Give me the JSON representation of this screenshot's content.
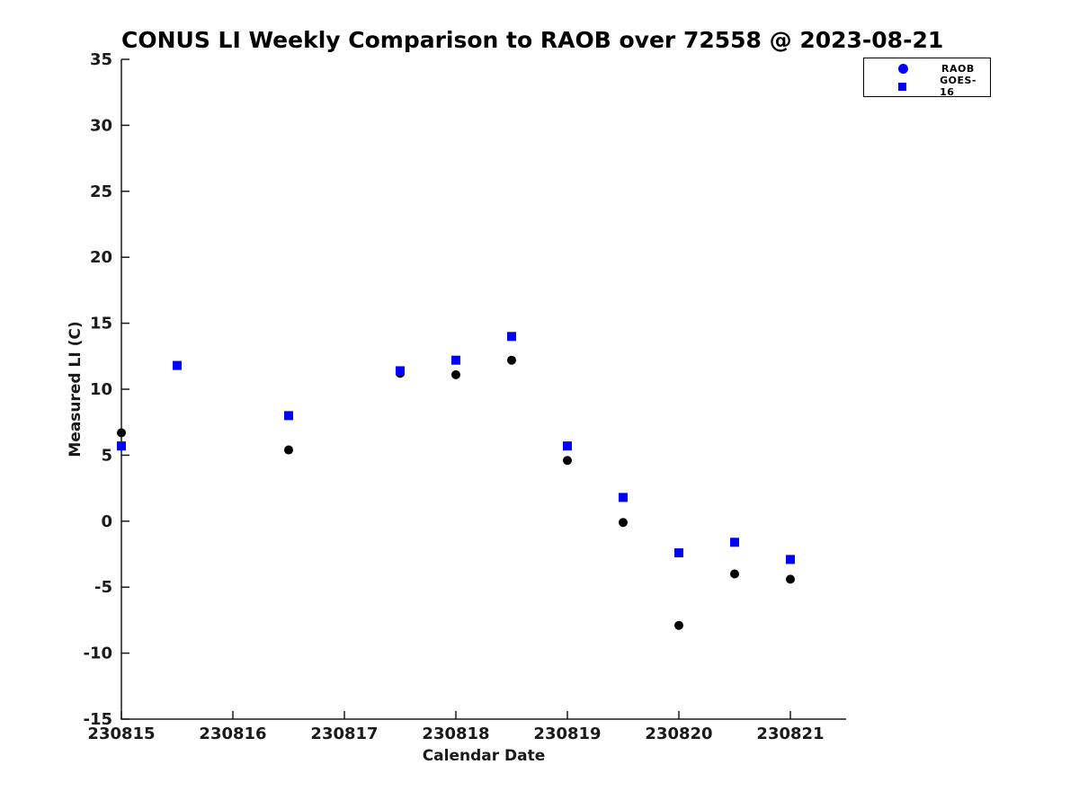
{
  "chart_data": {
    "type": "scatter",
    "title": "CONUS LI Weekly Comparison to RAOB over 72558 @ 2023-08-21",
    "xlabel": "Calendar Date",
    "ylabel": "Measured LI (C)",
    "xlim": [
      230815,
      230821.5
    ],
    "ylim": [
      -15,
      35
    ],
    "xticks": [
      230815,
      230816,
      230817,
      230818,
      230819,
      230820,
      230821
    ],
    "xtick_labels": [
      "230815",
      "230816",
      "230817",
      "230818",
      "230819",
      "230820",
      "230821"
    ],
    "yticks": [
      -15,
      -10,
      -5,
      0,
      5,
      10,
      15,
      20,
      25,
      30,
      35
    ],
    "grid": false,
    "box": false,
    "axis_color": "#1a1a1a",
    "background_color": "#ffffff",
    "legend": {
      "position": "outside-top-right",
      "items": [
        {
          "label": "RAOB",
          "marker": "circle",
          "color": "#0000ff"
        },
        {
          "label": "GOES-16",
          "marker": "square",
          "color": "#0000ff"
        }
      ]
    },
    "series": [
      {
        "name": "RAOB",
        "marker": "circle",
        "point_color": "#000000",
        "points": [
          [
            230815,
            6.7
          ],
          [
            230815.5,
            11.8
          ],
          [
            230816.5,
            5.4
          ],
          [
            230817.5,
            11.2
          ],
          [
            230818,
            11.1
          ],
          [
            230818.5,
            12.2
          ],
          [
            230819,
            4.6
          ],
          [
            230819.5,
            -0.1
          ],
          [
            230820,
            -7.9
          ],
          [
            230820.5,
            -4.0
          ],
          [
            230821,
            -4.4
          ]
        ]
      },
      {
        "name": "GOES-16",
        "marker": "square",
        "point_color": "#0000ff",
        "points": [
          [
            230815,
            5.7
          ],
          [
            230815.5,
            11.8
          ],
          [
            230816.5,
            8.0
          ],
          [
            230817.5,
            11.4
          ],
          [
            230818,
            12.2
          ],
          [
            230818.5,
            14.0
          ],
          [
            230819,
            5.7
          ],
          [
            230819.5,
            1.8
          ],
          [
            230820,
            -2.4
          ],
          [
            230820.5,
            -1.6
          ],
          [
            230821,
            -2.9
          ]
        ]
      }
    ]
  }
}
